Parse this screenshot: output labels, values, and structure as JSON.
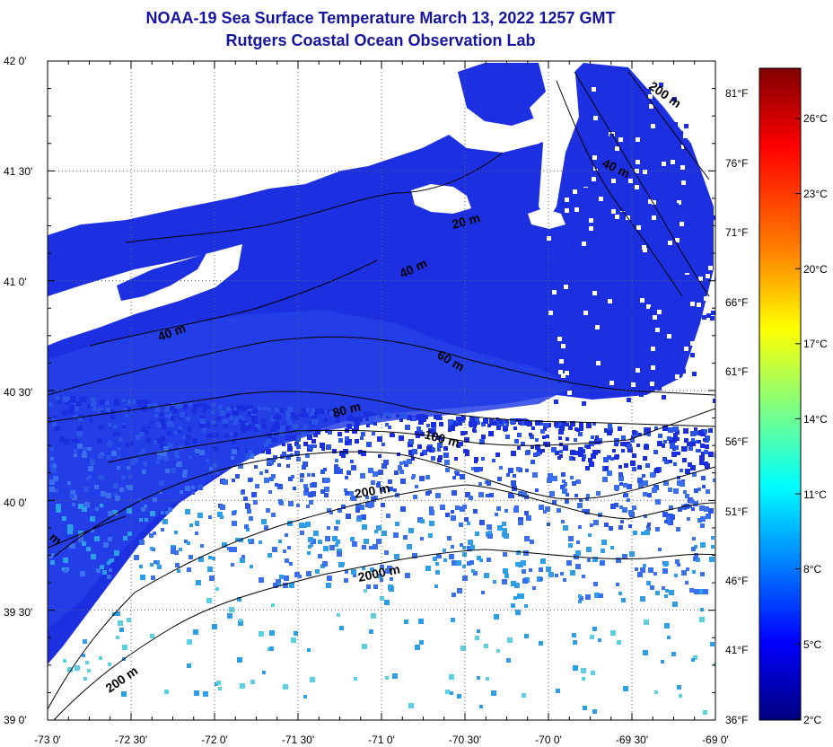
{
  "title": {
    "line1": "NOAA-19 Sea Surface Temperature March 13, 2022 1257 GMT",
    "line2": "Rutgers Coastal Ocean Observation Lab"
  },
  "map": {
    "lon_ticks": [
      "-73 0'",
      "-72 30'",
      "-72 0'",
      "-71 30'",
      "-71 0'",
      "-70 30'",
      "-70 0'",
      "-69 30'",
      "-69 0'"
    ],
    "lat_ticks": [
      "42 0'",
      "41 30'",
      "41 0'",
      "40 30'",
      "40 0'",
      "39 30'",
      "39 0'"
    ],
    "fahrenheit_ticks": [
      "81°F",
      "76°F",
      "71°F",
      "66°F",
      "61°F",
      "56°F",
      "51°F",
      "46°F",
      "41°F",
      "36°F"
    ],
    "contour_labels": [
      "200 m",
      "40 m",
      "20 m",
      "40 m",
      "40 m",
      "60 m",
      "80 m",
      "100 m",
      "200 m",
      "2000 m",
      "200 m",
      "m"
    ]
  },
  "colorbar": {
    "celsius_ticks": [
      "26°C",
      "23°C",
      "20°C",
      "17°C",
      "14°C",
      "11°C",
      "8°C",
      "5°C",
      "2°C"
    ],
    "colors": [
      "#800000",
      "#ff0000",
      "#ff8000",
      "#ffff00",
      "#80ff80",
      "#00ffff",
      "#0080ff",
      "#0000ff",
      "#000080"
    ]
  },
  "colors": {
    "land": "#ffffff",
    "water_cold": "#1a2ee0",
    "water_mid": "#2a55e8",
    "water_warm": "#2f9ee8",
    "title": "#1414a0"
  }
}
